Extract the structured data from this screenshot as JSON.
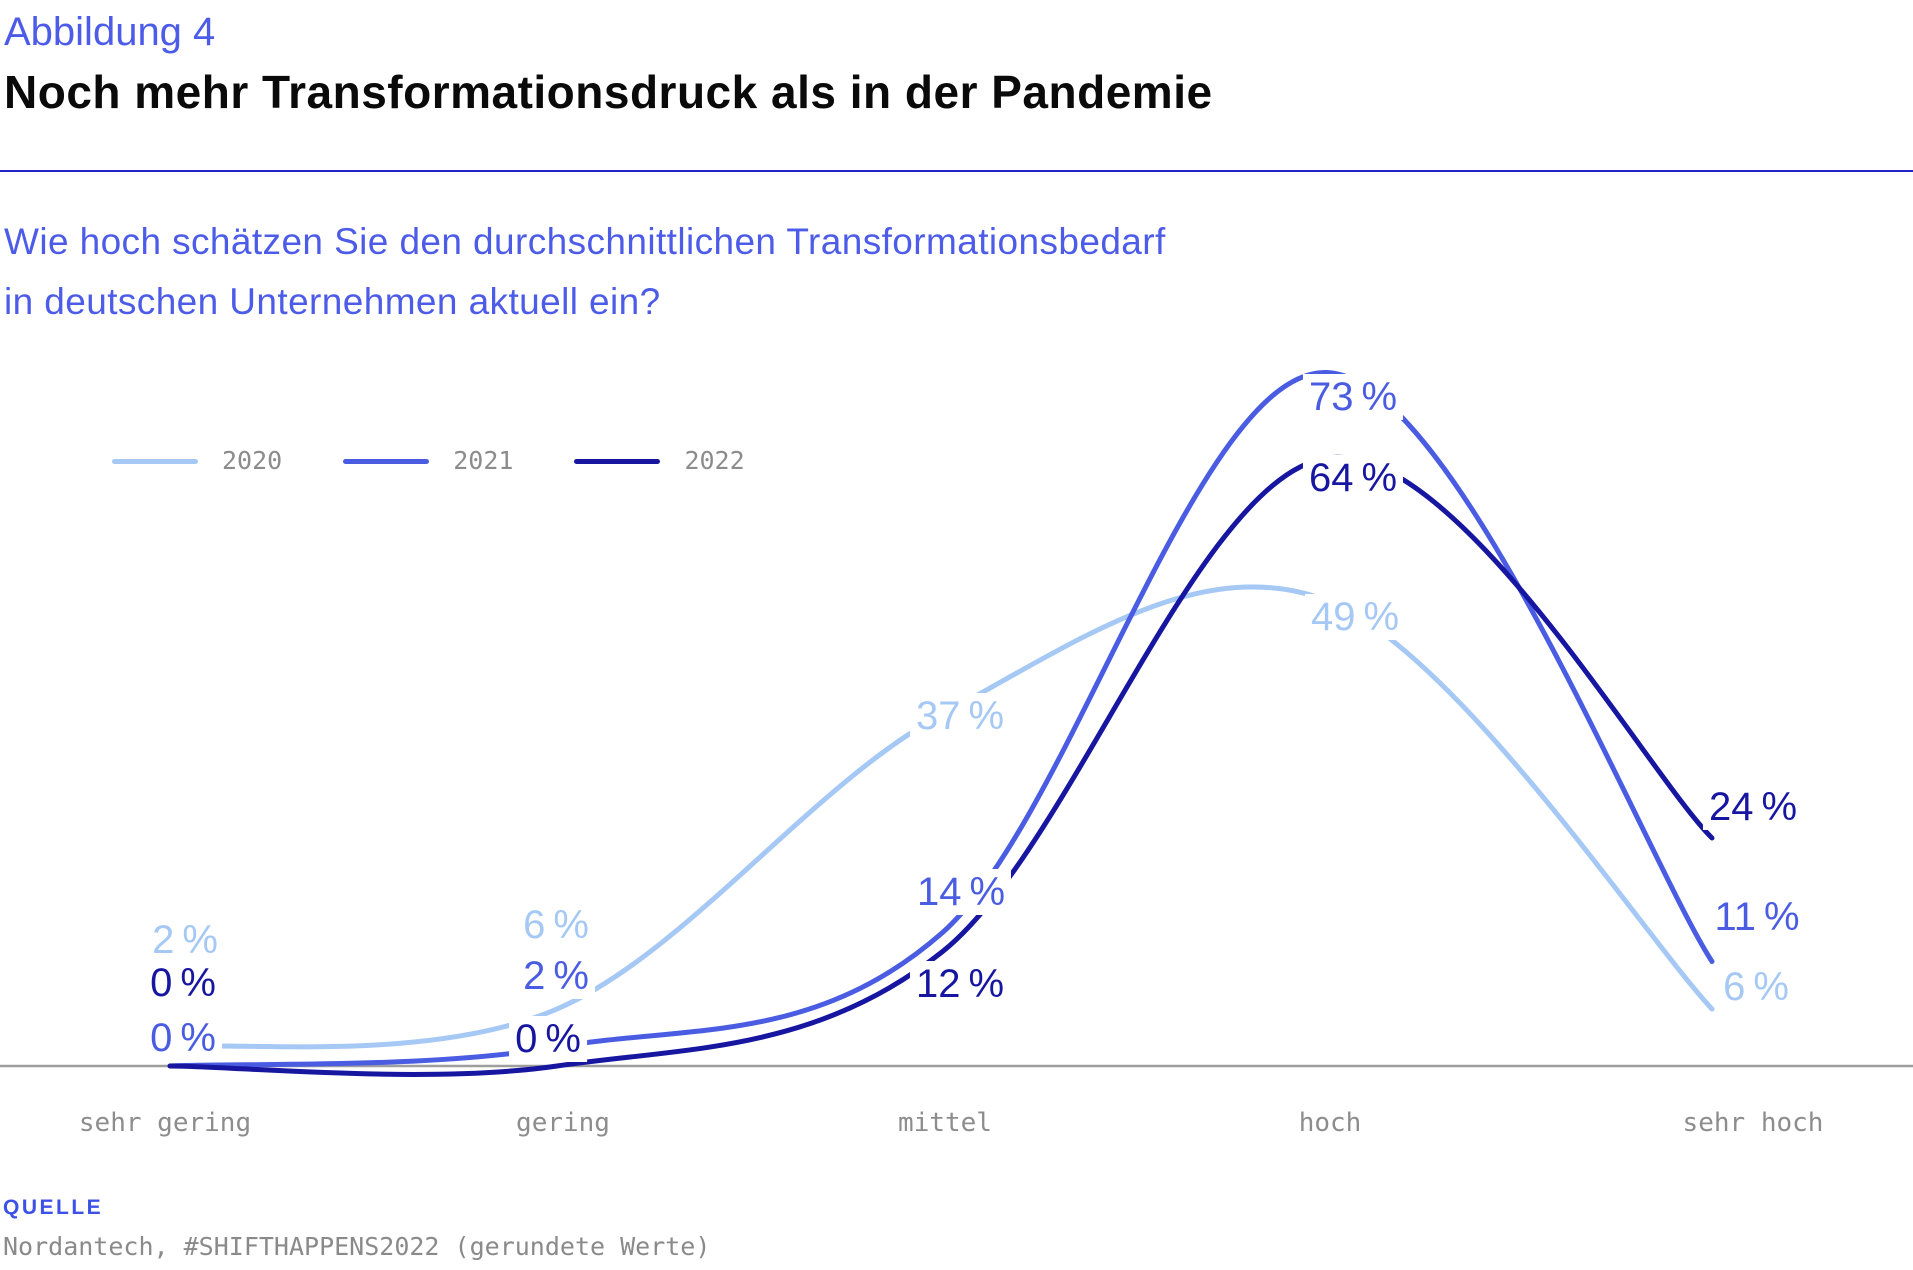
{
  "header": {
    "kicker": "Abbildung 4",
    "title": "Noch mehr Transformationsdruck als in der Pandemie"
  },
  "question": {
    "line1": "Wie hoch schätzen Sie den durchschnittlichen Transformationsbedarf",
    "line2": "in deutschen Unternehmen aktuell ein?"
  },
  "source": {
    "label": "QUELLE",
    "text": "Nordantech, #SHIFTHAPPENS2022 (gerundete Werte)"
  },
  "colors": {
    "accent_text_blue": "#4d5ce8",
    "divider_blue": "#2323c6",
    "axis_gray": "#9e9e9e",
    "label_gray": "#8d8d8d"
  },
  "chart_data": {
    "type": "line",
    "title": "Noch mehr Transformationsdruck als in der Pandemie",
    "xlabel": "",
    "ylabel": "",
    "ylim": [
      0,
      80
    ],
    "grid": false,
    "legend_position": "top-left",
    "categories": [
      "sehr gering",
      "gering",
      "mittel",
      "hoch",
      "sehr hoch"
    ],
    "series": [
      {
        "name": "2020",
        "color": "#a5c8f5",
        "values": [
          2,
          6,
          37,
          49,
          6
        ],
        "labels": [
          "2 %",
          "6 %",
          "37 %",
          "49 %",
          "6 %"
        ]
      },
      {
        "name": "2021",
        "color": "#4a5de2",
        "values": [
          0,
          2,
          14,
          73,
          11
        ],
        "labels": [
          "0 %",
          "2 %",
          "14 %",
          "73 %",
          "11 %"
        ]
      },
      {
        "name": "2022",
        "color": "#1716a0",
        "values": [
          0,
          0,
          12,
          64,
          24
        ],
        "labels": [
          "0 %",
          "0 %",
          "12 %",
          "64 %",
          "24 %"
        ]
      }
    ]
  }
}
